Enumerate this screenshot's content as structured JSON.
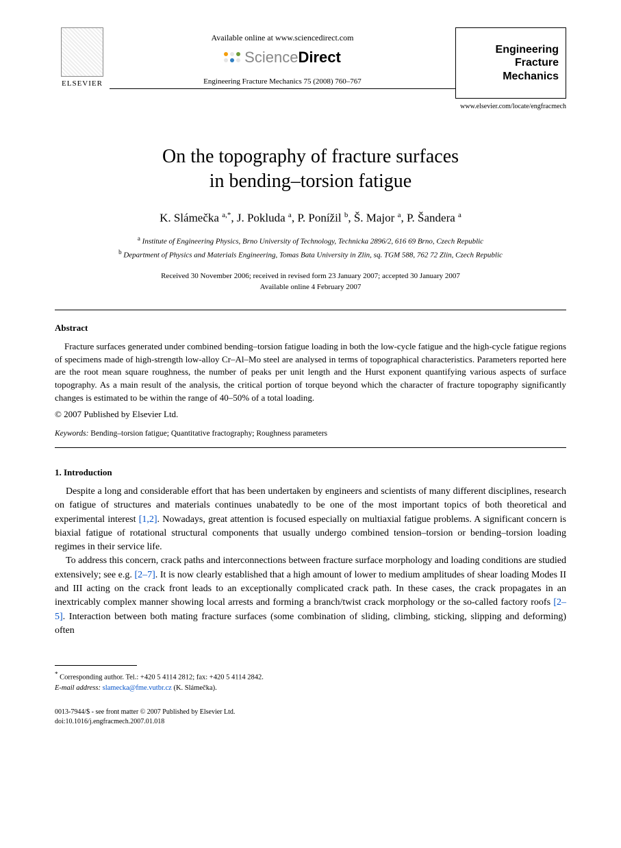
{
  "header": {
    "publisher": "ELSEVIER",
    "available_text": "Available online at www.sciencedirect.com",
    "sd_light": "Science",
    "sd_bold": "Direct",
    "sd_dot_colors": [
      "#f59e0b",
      "#e5e5e5",
      "#6e9d3a",
      "#e5e5e5",
      "#2f7ec2",
      "#e5e5e5"
    ],
    "citation": "Engineering Fracture Mechanics 75 (2008) 760–767",
    "journal_box_l1": "Engineering",
    "journal_box_l2": "Fracture",
    "journal_box_l3": "Mechanics",
    "journal_url": "www.elsevier.com/locate/engfracmech"
  },
  "title_l1": "On the topography of fracture surfaces",
  "title_l2": "in bending–torsion fatigue",
  "authors_html": "K. Slámečka <sup>a,*</sup>, J. Pokluda <sup>a</sup>, P. Ponížil <sup>b</sup>, Š. Major <sup>a</sup>, P. Šandera <sup>a</sup>",
  "affiliations": {
    "a": "Institute of Engineering Physics, Brno University of Technology, Technicka 2896/2, 616 69 Brno, Czech Republic",
    "b": "Department of Physics and Materials Engineering, Tomas Bata University in Zlin, sq. TGM 588, 762 72 Zlin, Czech Republic"
  },
  "dates_l1": "Received 30 November 2006; received in revised form 23 January 2007; accepted 30 January 2007",
  "dates_l2": "Available online 4 February 2007",
  "abstract": {
    "heading": "Abstract",
    "body": "Fracture surfaces generated under combined bending–torsion fatigue loading in both the low-cycle fatigue and the high-cycle fatigue regions of specimens made of high-strength low-alloy Cr–Al–Mo steel are analysed in terms of topographical characteristics. Parameters reported here are the root mean square roughness, the number of peaks per unit length and the Hurst exponent quantifying various aspects of surface topography. As a main result of the analysis, the critical portion of torque beyond which the character of fracture topography significantly changes is estimated to be within the range of 40–50% of a total loading.",
    "copyright": "© 2007 Published by Elsevier Ltd."
  },
  "keywords": {
    "label": "Keywords:",
    "text": "Bending–torsion fatigue; Quantitative fractography; Roughness parameters"
  },
  "intro": {
    "heading": "1. Introduction",
    "p1_a": "Despite a long and considerable effort that has been undertaken by engineers and scientists of many different disciplines, research on fatigue of structures and materials continues unabatedly to be one of the most important topics of both theoretical and experimental interest ",
    "p1_ref1": "[1,2]",
    "p1_b": ". Nowadays, great attention is focused especially on multiaxial fatigue problems. A significant concern is biaxial fatigue of rotational structural components that usually undergo combined tension–torsion or bending–torsion loading regimes in their service life.",
    "p2_a": "To address this concern, crack paths and interconnections between fracture surface morphology and loading conditions are studied extensively; see e.g. ",
    "p2_ref1": "[2–7]",
    "p2_b": ". It is now clearly established that a high amount of lower to medium amplitudes of shear loading Modes II and III acting on the crack front leads to an exceptionally complicated crack path. In these cases, the crack propagates in an inextricably complex manner showing local arrests and forming a branch/twist crack morphology or the so-called factory roofs ",
    "p2_ref2": "[2–5]",
    "p2_c": ". Interaction between both mating fracture surfaces (some combination of sliding, climbing, sticking, slipping and deforming) often"
  },
  "footnote": {
    "corr_label": "Corresponding author. Tel.: +420 5 4114 2812; fax: +420 5 4114 2842.",
    "email_label": "E-mail address:",
    "email": "slamecka@fme.vutbr.cz",
    "email_tail": "(K. Slámečka)."
  },
  "footer": {
    "line1": "0013-7944/$ - see front matter © 2007 Published by Elsevier Ltd.",
    "line2": "doi:10.1016/j.engfracmech.2007.01.018"
  },
  "colors": {
    "link": "#0050c8",
    "text": "#000000",
    "background": "#ffffff"
  }
}
